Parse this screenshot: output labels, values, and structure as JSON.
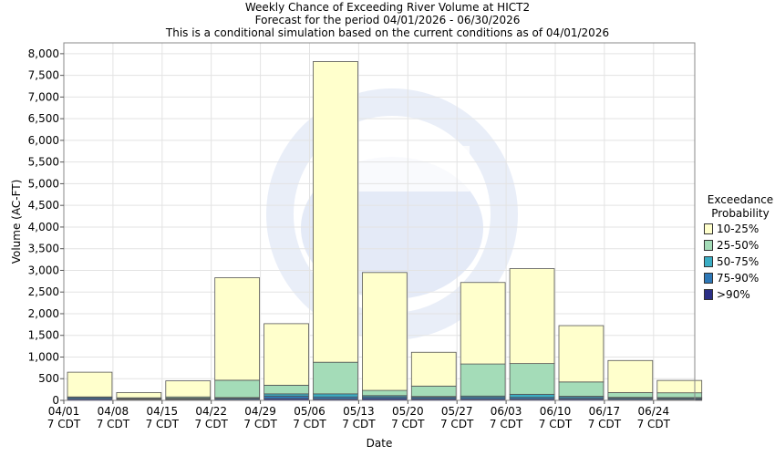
{
  "title": {
    "line1": "Weekly Chance of Exceeding River Volume at HICT2",
    "line2": "Forecast for the period 04/01/2026 - 06/30/2026",
    "line3": "This is a conditional simulation based on the current conditions as of 04/01/2026"
  },
  "chart_data": {
    "type": "bar",
    "stacked": true,
    "xlabel": "Date",
    "ylabel": "Volume (AC-FT)",
    "ylim": [
      0,
      8250
    ],
    "yticks": [
      0,
      500,
      1000,
      1500,
      2000,
      2500,
      3000,
      3500,
      4000,
      4500,
      5000,
      5500,
      6000,
      6500,
      7000,
      7500,
      8000
    ],
    "ytick_labels": [
      "0",
      "500",
      "1,000",
      "1,500",
      "2,000",
      "2,500",
      "3,000",
      "3,500",
      "4,000",
      "4,500",
      "5,000",
      "5,500",
      "6,000",
      "6,500",
      "7,000",
      "7,500",
      "8,000"
    ],
    "grid": true,
    "legend_position": "right",
    "legend_title": [
      "Exceedance",
      "Probability"
    ],
    "categories": [
      "04/01",
      "04/08",
      "04/15",
      "04/22",
      "04/29",
      "05/06",
      "05/13",
      "05/20",
      "05/27",
      "06/03",
      "06/10",
      "06/17",
      "06/24"
    ],
    "category_sublabel": "7 CDT",
    "series": [
      {
        "name": ">90%",
        "color": "#2b2f86",
        "values": [
          30,
          10,
          15,
          25,
          40,
          30,
          40,
          35,
          30,
          30,
          30,
          25,
          20
        ]
      },
      {
        "name": "75-90%",
        "color": "#2e78b7",
        "values": [
          35,
          15,
          20,
          25,
          60,
          50,
          40,
          35,
          40,
          40,
          35,
          25,
          25
        ]
      },
      {
        "name": "50-75%",
        "color": "#3aadc4",
        "values": [
          15,
          15,
          15,
          15,
          50,
          70,
          30,
          20,
          30,
          70,
          30,
          20,
          20
        ]
      },
      {
        "name": "25-50%",
        "color": "#a4dcb8",
        "values": [
          0,
          20,
          30,
          400,
          200,
          730,
          120,
          240,
          740,
          710,
          330,
          110,
          110
        ]
      },
      {
        "name": "10-25%",
        "color": "#ffffcc",
        "values": [
          570,
          120,
          370,
          2365,
          1420,
          6940,
          2720,
          780,
          1880,
          2190,
          1300,
          740,
          285
        ]
      }
    ]
  }
}
